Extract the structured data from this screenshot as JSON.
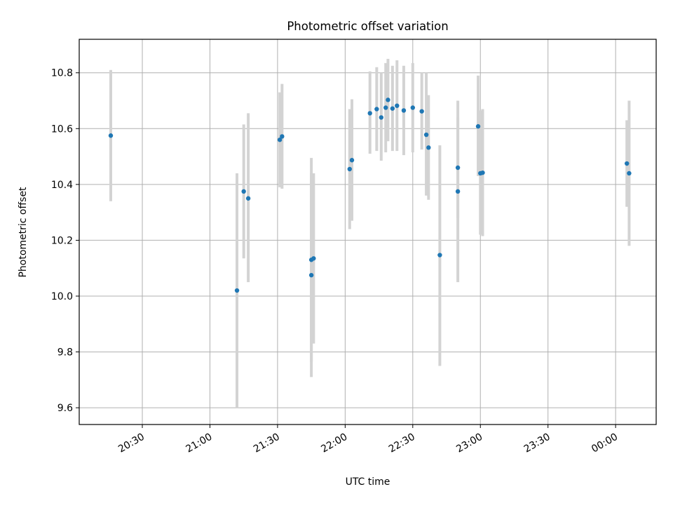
{
  "chart_data": {
    "type": "scatter",
    "title": "Photometric offset variation",
    "xlabel": "UTC time",
    "ylabel": "Photometric offset",
    "grid": true,
    "xlim": [
      "20:02",
      "00:18"
    ],
    "ylim": [
      9.54,
      10.92
    ],
    "x_ticks": [
      "20:30",
      "21:00",
      "21:30",
      "22:00",
      "22:30",
      "23:00",
      "23:30",
      "00:00"
    ],
    "y_ticks": [
      "9.6",
      "9.8",
      "10.0",
      "10.2",
      "10.4",
      "10.6",
      "10.8"
    ],
    "colors": {
      "points": "#1f77b4",
      "errorbars": "#d3d3d3",
      "grid": "#b0b0b0"
    },
    "points": [
      {
        "time": "20:16",
        "value": 10.575,
        "err_low": 10.34,
        "err_high": 10.81
      },
      {
        "time": "21:12",
        "value": 10.02,
        "err_low": 9.6,
        "err_high": 10.44
      },
      {
        "time": "21:15",
        "value": 10.375,
        "err_low": 10.135,
        "err_high": 10.615
      },
      {
        "time": "21:17",
        "value": 10.35,
        "err_low": 10.05,
        "err_high": 10.655
      },
      {
        "time": "21:31",
        "value": 10.56,
        "err_low": 10.39,
        "err_high": 10.73
      },
      {
        "time": "21:32",
        "value": 10.572,
        "err_low": 10.385,
        "err_high": 10.76
      },
      {
        "time": "21:45",
        "value": 10.075,
        "err_low": 9.71,
        "err_high": 10.44
      },
      {
        "time": "21:45",
        "value": 10.13,
        "err_low": 9.765,
        "err_high": 10.495
      },
      {
        "time": "21:46",
        "value": 10.135,
        "err_low": 9.83,
        "err_high": 10.44
      },
      {
        "time": "22:02",
        "value": 10.455,
        "err_low": 10.24,
        "err_high": 10.67
      },
      {
        "time": "22:03",
        "value": 10.487,
        "err_low": 10.27,
        "err_high": 10.705
      },
      {
        "time": "22:11",
        "value": 10.655,
        "err_low": 10.51,
        "err_high": 10.805
      },
      {
        "time": "22:14",
        "value": 10.67,
        "err_low": 10.52,
        "err_high": 10.82
      },
      {
        "time": "22:16",
        "value": 10.64,
        "err_low": 10.485,
        "err_high": 10.8
      },
      {
        "time": "22:18",
        "value": 10.675,
        "err_low": 10.515,
        "err_high": 10.835
      },
      {
        "time": "22:19",
        "value": 10.703,
        "err_low": 10.555,
        "err_high": 10.85
      },
      {
        "time": "22:21",
        "value": 10.672,
        "err_low": 10.52,
        "err_high": 10.825
      },
      {
        "time": "22:23",
        "value": 10.682,
        "err_low": 10.52,
        "err_high": 10.845
      },
      {
        "time": "22:26",
        "value": 10.665,
        "err_low": 10.505,
        "err_high": 10.825
      },
      {
        "time": "22:30",
        "value": 10.675,
        "err_low": 10.515,
        "err_high": 10.835
      },
      {
        "time": "22:34",
        "value": 10.662,
        "err_low": 10.525,
        "err_high": 10.8
      },
      {
        "time": "22:36",
        "value": 10.578,
        "err_low": 10.36,
        "err_high": 10.8
      },
      {
        "time": "22:37",
        "value": 10.532,
        "err_low": 10.345,
        "err_high": 10.72
      },
      {
        "time": "22:42",
        "value": 10.147,
        "err_low": 9.75,
        "err_high": 10.54
      },
      {
        "time": "22:50",
        "value": 10.46,
        "err_low": 10.28,
        "err_high": 10.64
      },
      {
        "time": "22:50",
        "value": 10.375,
        "err_low": 10.05,
        "err_high": 10.7
      },
      {
        "time": "22:59",
        "value": 10.608,
        "err_low": 10.43,
        "err_high": 10.79
      },
      {
        "time": "23:00",
        "value": 10.44,
        "err_low": 10.22,
        "err_high": 10.665
      },
      {
        "time": "23:01",
        "value": 10.442,
        "err_low": 10.215,
        "err_high": 10.67
      },
      {
        "time": "00:05",
        "value": 10.475,
        "err_low": 10.32,
        "err_high": 10.63
      },
      {
        "time": "00:06",
        "value": 10.44,
        "err_low": 10.18,
        "err_high": 10.7
      }
    ]
  }
}
